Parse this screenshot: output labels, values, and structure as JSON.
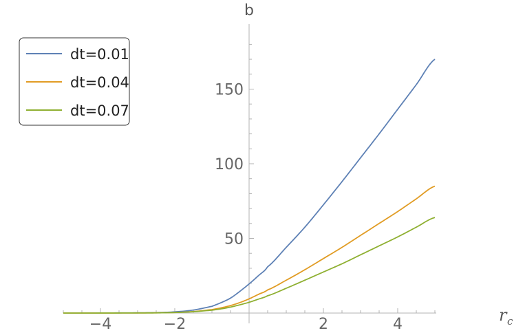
{
  "chart_data": {
    "type": "line",
    "xlabel_main": "r",
    "xlabel_sub": "c",
    "ylabel": "b",
    "xlim": [
      -5,
      5
    ],
    "ylim": [
      0,
      190
    ],
    "x_ticks": [
      -4,
      -2,
      2,
      4
    ],
    "x_tick_labels": [
      "−4",
      "−2",
      "2",
      "4"
    ],
    "y_ticks": [
      50,
      100,
      150
    ],
    "y_tick_labels": [
      "50",
      "100",
      "150"
    ],
    "grid": false,
    "legend_position": "top-left",
    "series": [
      {
        "name": "dt=0.01",
        "color": "#5E81B5",
        "x": [
          -5,
          -4,
          -3,
          -2.5,
          -2,
          -1.5,
          -1,
          -0.75,
          -0.5,
          -0.25,
          0,
          0.25,
          0.5,
          1,
          1.5,
          2,
          2.5,
          3,
          3.5,
          4,
          4.5,
          5
        ],
        "y": [
          0,
          0.04,
          0.15,
          0.3,
          0.8,
          2,
          4.5,
          7,
          10,
          14.5,
          19.5,
          25,
          31,
          44,
          57.5,
          72.5,
          88,
          104,
          120,
          136.5,
          153,
          170
        ]
      },
      {
        "name": "dt=0.04",
        "color": "#E19C24",
        "x": [
          -5,
          -4,
          -3,
          -2.5,
          -2,
          -1.5,
          -1,
          -0.75,
          -0.5,
          -0.25,
          0,
          0.25,
          0.5,
          1,
          1.5,
          2,
          2.5,
          3,
          3.5,
          4,
          4.5,
          5
        ],
        "y": [
          0,
          0.02,
          0.08,
          0.15,
          0.4,
          1,
          2.3,
          3.5,
          5,
          7,
          9.5,
          12.5,
          15.5,
          22,
          29,
          36.5,
          44,
          52,
          60,
          68,
          76.5,
          85
        ]
      },
      {
        "name": "dt=0.07",
        "color": "#8FB032",
        "x": [
          -5,
          -4,
          -3,
          -2.5,
          -2,
          -1.5,
          -1,
          -0.75,
          -0.5,
          -0.25,
          0,
          0.25,
          0.5,
          1,
          1.5,
          2,
          2.5,
          3,
          3.5,
          4,
          4.5,
          5
        ],
        "y": [
          0,
          0.02,
          0.06,
          0.12,
          0.35,
          0.9,
          1.9,
          2.8,
          4,
          5.5,
          7.2,
          9.3,
          11.6,
          16.6,
          22,
          27.5,
          33,
          39,
          45,
          51,
          57.5,
          64
        ]
      }
    ]
  }
}
